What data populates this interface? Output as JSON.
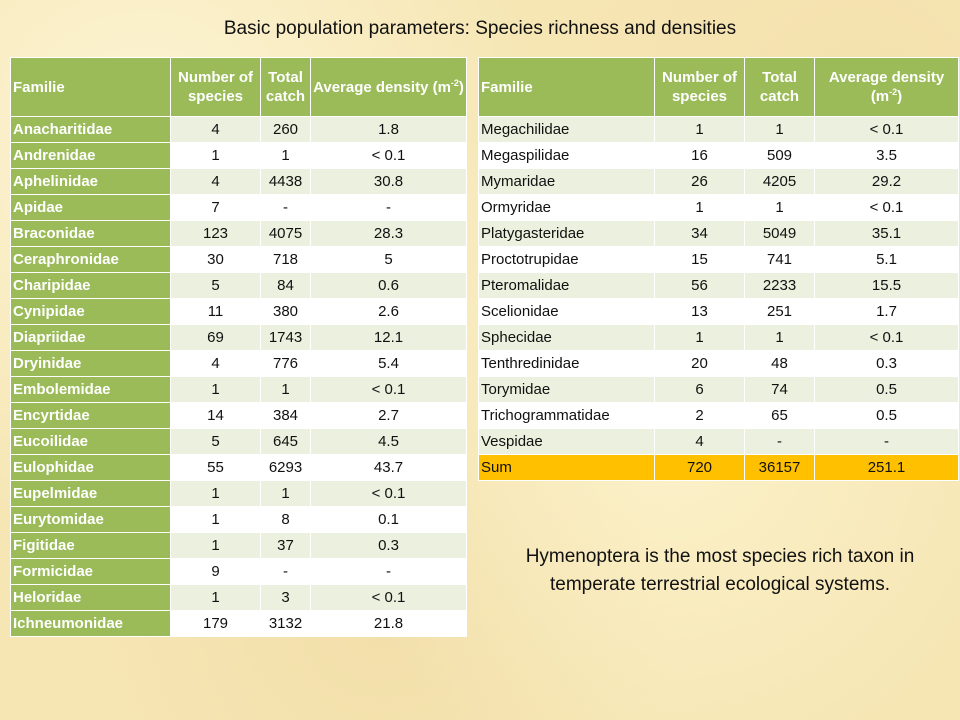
{
  "title": "Basic population parameters: Species richness and densities",
  "headers": {
    "family": "Familie",
    "species": "Number of species",
    "catch": "Total catch",
    "density": "Average density (m",
    "density_sup": "-2",
    "density_close": ")"
  },
  "left_rows": [
    [
      "Anacharitidae",
      "4",
      "260",
      "1.8"
    ],
    [
      "Andrenidae",
      "1",
      "1",
      "< 0.1"
    ],
    [
      "Aphelinidae",
      "4",
      "4438",
      "30.8"
    ],
    [
      "Apidae",
      "7",
      "-",
      "-"
    ],
    [
      "Braconidae",
      "123",
      "4075",
      "28.3"
    ],
    [
      "Ceraphronidae",
      "30",
      "718",
      "5"
    ],
    [
      "Charipidae",
      "5",
      "84",
      "0.6"
    ],
    [
      "Cynipidae",
      "11",
      "380",
      "2.6"
    ],
    [
      "Diapriidae",
      "69",
      "1743",
      "12.1"
    ],
    [
      "Dryinidae",
      "4",
      "776",
      "5.4"
    ],
    [
      "Embolemidae",
      "1",
      "1",
      "< 0.1"
    ],
    [
      "Encyrtidae",
      "14",
      "384",
      "2.7"
    ],
    [
      "Eucoilidae",
      "5",
      "645",
      "4.5"
    ],
    [
      "Eulophidae",
      "55",
      "6293",
      "43.7"
    ],
    [
      "Eupelmidae",
      "1",
      "1",
      "< 0.1"
    ],
    [
      "Eurytomidae",
      "1",
      "8",
      "0.1"
    ],
    [
      "Figitidae",
      "1",
      "37",
      "0.3"
    ],
    [
      "Formicidae",
      "9",
      "-",
      "-"
    ],
    [
      "Heloridae",
      "1",
      "3",
      "< 0.1"
    ],
    [
      "Ichneumonidae",
      "179",
      "3132",
      "21.8"
    ]
  ],
  "right_rows": [
    [
      "Megachilidae",
      "1",
      "1",
      "< 0.1"
    ],
    [
      "Megaspilidae",
      "16",
      "509",
      "3.5"
    ],
    [
      "Mymaridae",
      "26",
      "4205",
      "29.2"
    ],
    [
      "Ormyridae",
      "1",
      "1",
      "< 0.1"
    ],
    [
      "Platygasteridae",
      "34",
      "5049",
      "35.1"
    ],
    [
      "Proctotrupidae",
      "15",
      "741",
      "5.1"
    ],
    [
      "Pteromalidae",
      "56",
      "2233",
      "15.5"
    ],
    [
      "Scelionidae",
      "13",
      "251",
      "1.7"
    ],
    [
      "Sphecidae",
      "1",
      "1",
      "< 0.1"
    ],
    [
      "Tenthredinidae",
      "20",
      "48",
      "0.3"
    ],
    [
      "Torymidae",
      "6",
      "74",
      "0.5"
    ],
    [
      "Trichogrammatidae",
      "2",
      "65",
      "0.5"
    ],
    [
      "Vespidae",
      "4",
      "-",
      "-"
    ]
  ],
  "sum_row": [
    "Sum",
    "720",
    "36157",
    "251.1"
  ],
  "note": "Hymenoptera is the most species rich taxon in temperate terrestrial ecological systems."
}
